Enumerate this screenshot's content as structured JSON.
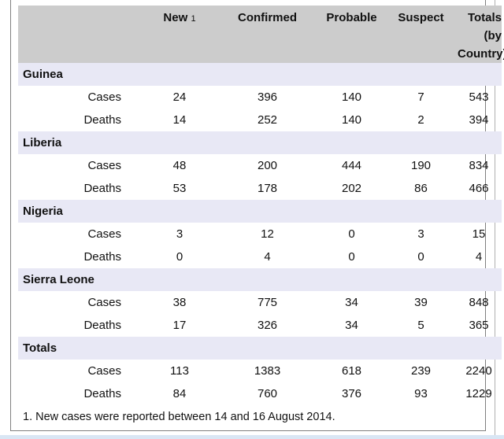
{
  "header": {
    "new_label": "New",
    "new_footnote": "1",
    "confirmed": "Confirmed",
    "probable": "Probable",
    "suspect": "Suspect",
    "totals_line1": "Totals",
    "totals_line2": "(by",
    "totals_line3": "Country)"
  },
  "groups": [
    {
      "name": "Guinea",
      "rows": [
        {
          "label": "Cases",
          "new": "24",
          "confirmed": "396",
          "probable": "140",
          "suspect": "7",
          "total": "543"
        },
        {
          "label": "Deaths",
          "new": "14",
          "confirmed": "252",
          "probable": "140",
          "suspect": "2",
          "total": "394"
        }
      ]
    },
    {
      "name": "Liberia",
      "rows": [
        {
          "label": "Cases",
          "new": "48",
          "confirmed": "200",
          "probable": "444",
          "suspect": "190",
          "total": "834"
        },
        {
          "label": "Deaths",
          "new": "53",
          "confirmed": "178",
          "probable": "202",
          "suspect": "86",
          "total": "466"
        }
      ]
    },
    {
      "name": "Nigeria",
      "rows": [
        {
          "label": "Cases",
          "new": "3",
          "confirmed": "12",
          "probable": "0",
          "suspect": "3",
          "total": "15"
        },
        {
          "label": "Deaths",
          "new": "0",
          "confirmed": "4",
          "probable": "0",
          "suspect": "0",
          "total": "4"
        }
      ]
    },
    {
      "name": "Sierra Leone",
      "rows": [
        {
          "label": "Cases",
          "new": "38",
          "confirmed": "775",
          "probable": "34",
          "suspect": "39",
          "total": "848"
        },
        {
          "label": "Deaths",
          "new": "17",
          "confirmed": "326",
          "probable": "34",
          "suspect": "5",
          "total": "365"
        }
      ]
    },
    {
      "name": "Totals",
      "rows": [
        {
          "label": "Cases",
          "new": "113",
          "confirmed": "1383",
          "probable": "618",
          "suspect": "239",
          "total": "2240"
        },
        {
          "label": "Deaths",
          "new": "84",
          "confirmed": "760",
          "probable": "376",
          "suspect": "93",
          "total": "1229"
        }
      ]
    }
  ],
  "footnote": "1. New cases were reported between 14 and 16 August 2014."
}
